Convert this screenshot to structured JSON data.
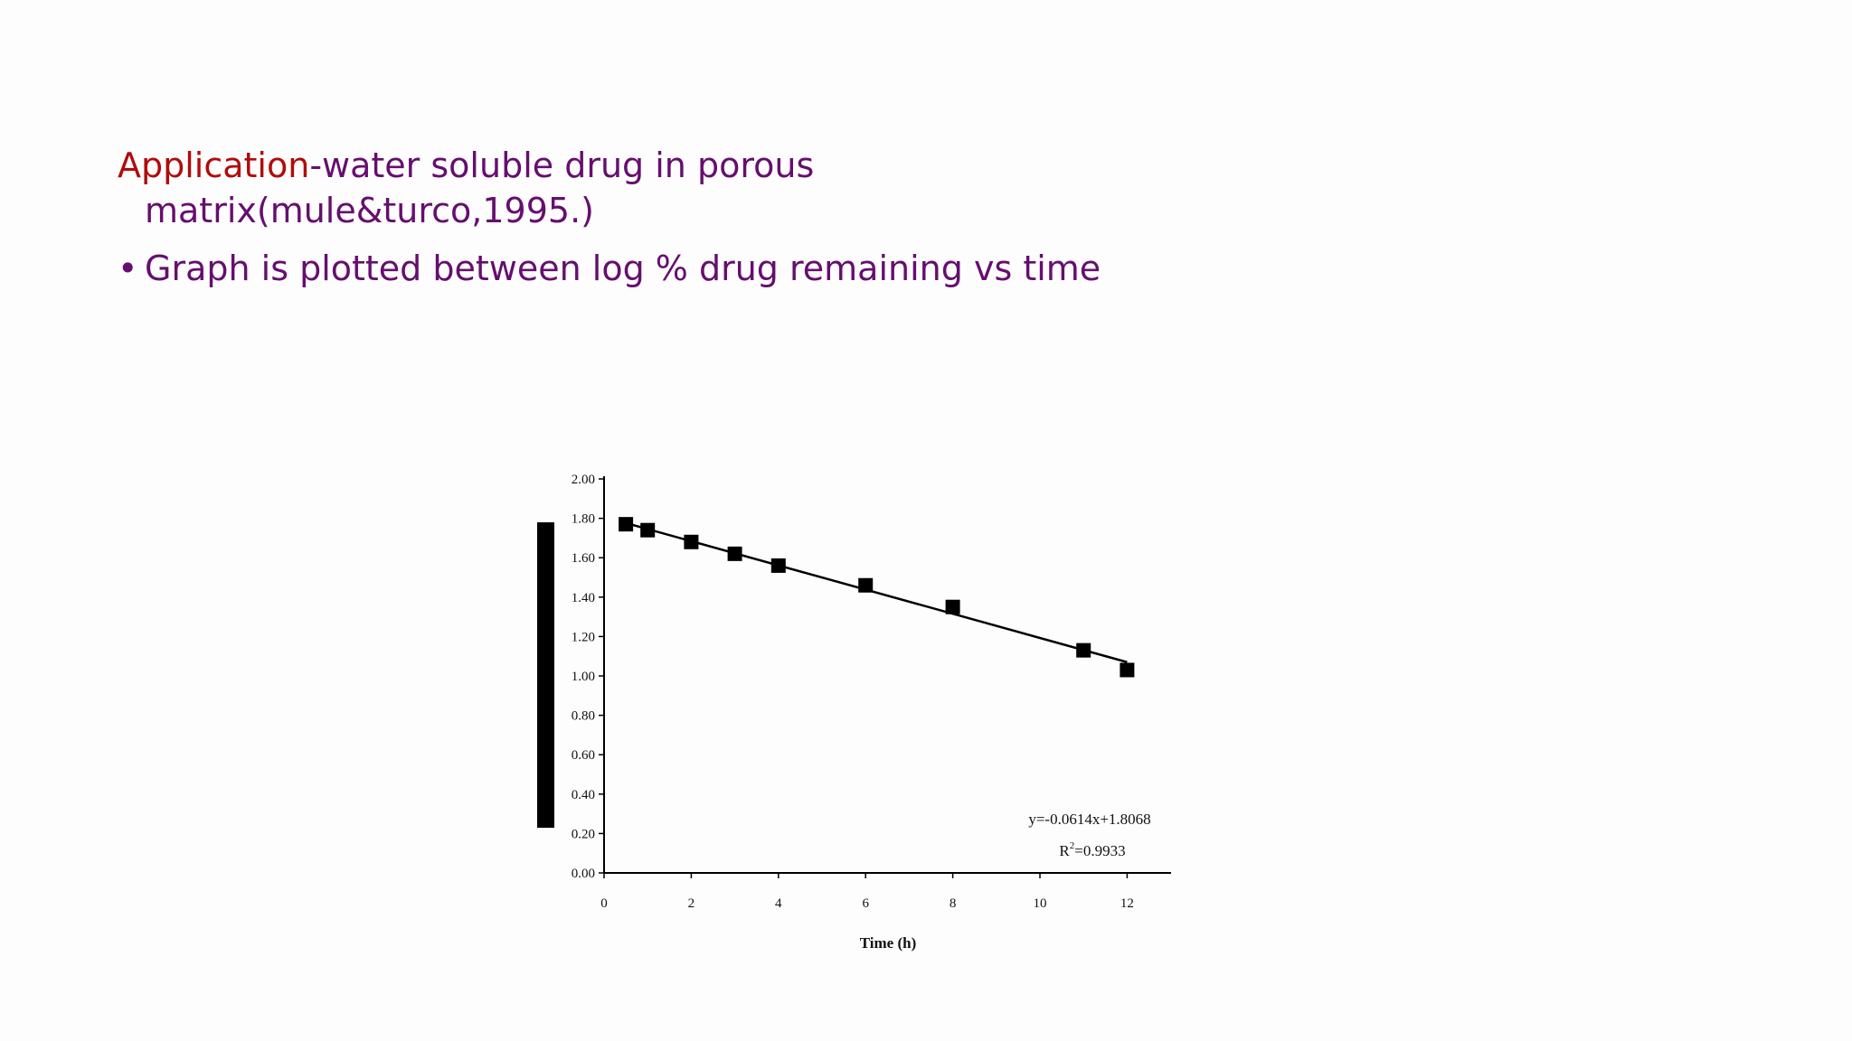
{
  "slide": {
    "heading_red": "Application",
    "heading_rest": "-water soluble drug in porous",
    "heading_line2": "matrix(mule&turco,1995.)",
    "bullet_symbol": "•",
    "bullet_text": "Graph is plotted between log % drug remaining vs time",
    "colors": {
      "red": "#b10b0b",
      "purple": "#660e6f"
    }
  },
  "chart_data": {
    "type": "scatter",
    "xlabel": "Time (h)",
    "ylabel": "",
    "xlim": [
      0,
      13
    ],
    "ylim": [
      0,
      2.0
    ],
    "x_ticks": [
      "0",
      "2",
      "4",
      "6",
      "8",
      "10",
      "12"
    ],
    "y_ticks": [
      "0.00",
      "0.20",
      "0.40",
      "0.60",
      "0.80",
      "1.00",
      "1.20",
      "1.40",
      "1.60",
      "1.80",
      "2.00"
    ],
    "series": [
      {
        "x": [
          0.5,
          1,
          2,
          3,
          4,
          6,
          8,
          11,
          12
        ],
        "y": [
          1.77,
          1.74,
          1.68,
          1.62,
          1.56,
          1.46,
          1.35,
          1.13,
          1.03
        ]
      }
    ],
    "trendline": {
      "slope": -0.0614,
      "intercept": 1.8068,
      "x_range": [
        0.5,
        12
      ]
    },
    "equation_text": "y=-0.0614x+1.8068",
    "r2_label": "R",
    "r2_sup": "2",
    "r2_value": "=0.9933",
    "grid": false
  }
}
